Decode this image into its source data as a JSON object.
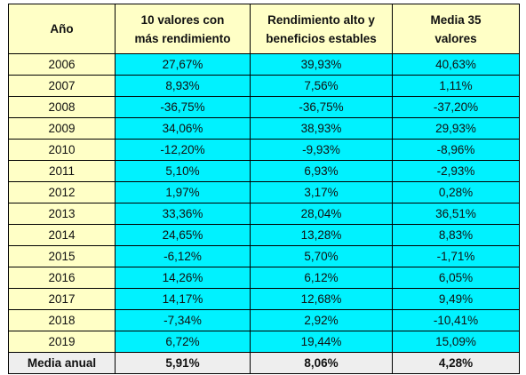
{
  "table": {
    "headers": [
      {
        "line1": "Año",
        "line2": ""
      },
      {
        "line1": "10 valores con",
        "line2": "más rendimiento"
      },
      {
        "line1": "Rendimiento alto y",
        "line2": "beneficios estables"
      },
      {
        "line1": "Media 35",
        "line2": "valores"
      }
    ],
    "rows": [
      [
        "2006",
        "27,67%",
        "39,93%",
        "40,63%"
      ],
      [
        "2007",
        "8,93%",
        "7,56%",
        "1,11%"
      ],
      [
        "2008",
        "-36,75%",
        "-36,75%",
        "-37,20%"
      ],
      [
        "2009",
        "34,06%",
        "38,93%",
        "29,93%"
      ],
      [
        "2010",
        "-12,20%",
        "-9,93%",
        "-8,96%"
      ],
      [
        "2011",
        "5,10%",
        "6,93%",
        "-2,93%"
      ],
      [
        "2012",
        "1,97%",
        "3,17%",
        "0,28%"
      ],
      [
        "2013",
        "33,36%",
        "28,04%",
        "36,51%"
      ],
      [
        "2014",
        "24,65%",
        "13,28%",
        "8,83%"
      ],
      [
        "2015",
        "-6,12%",
        "5,70%",
        "-1,71%"
      ],
      [
        "2016",
        "14,26%",
        "6,12%",
        "6,05%"
      ],
      [
        "2017",
        "14,17%",
        "12,68%",
        "9,49%"
      ],
      [
        "2018",
        "-7,34%",
        "2,92%",
        "-10,41%"
      ],
      [
        "2019",
        "6,72%",
        "19,44%",
        "15,09%"
      ]
    ],
    "footer": [
      "Media anual",
      "5,91%",
      "8,06%",
      "4,28%"
    ]
  }
}
